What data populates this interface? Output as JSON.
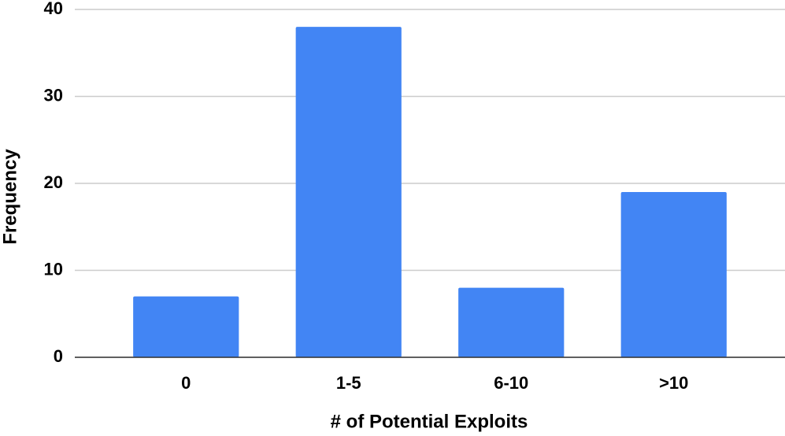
{
  "chart_data": {
    "type": "bar",
    "x_label": "# of Potential Exploits",
    "y_label": "Frequency",
    "categories": [
      "0",
      "1-5",
      "6-10",
      ">10"
    ],
    "values": [
      7,
      38,
      8,
      19
    ],
    "color": "#4285f4",
    "ylim": [
      0,
      40
    ],
    "yticks": [
      0,
      10,
      20,
      30,
      40
    ],
    "grid": true
  }
}
